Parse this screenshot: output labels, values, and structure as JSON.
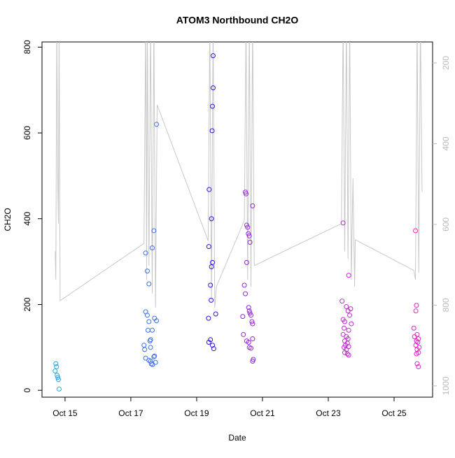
{
  "chart_data": {
    "type": "scatter",
    "title": "ATOM3 Northbound CH2O",
    "x_label": "Date",
    "y_label": "CH2O",
    "xlim": [
      14.3,
      26.17
    ],
    "ylim": [
      -16,
      812
    ],
    "y2lim": [
      1028,
      148
    ],
    "xticks": [
      {
        "value": 15,
        "label": "Oct 15"
      },
      {
        "value": 17,
        "label": "Oct 17"
      },
      {
        "value": 19,
        "label": "Oct 19"
      },
      {
        "value": 21,
        "label": "Oct 21"
      },
      {
        "value": 23,
        "label": "Oct 23"
      },
      {
        "value": 25,
        "label": "Oct 25"
      }
    ],
    "yticks": [
      0,
      200,
      400,
      600,
      800
    ],
    "y2ticks": [
      200,
      400,
      600,
      800,
      1000
    ],
    "series": [
      {
        "color": "#1ea8e8",
        "x": [
          14.72,
          14.74,
          14.7,
          14.76,
          14.78,
          14.8,
          14.82
        ],
        "values": [
          62,
          55,
          45,
          35,
          30,
          25,
          3
        ]
      },
      {
        "color": "#3a70f0",
        "x": [
          17.45,
          17.5,
          17.55,
          17.45,
          17.5,
          17.55,
          17.52,
          17.6,
          17.58,
          17.65,
          17.4,
          17.6,
          17.42,
          17.72,
          17.7,
          17.45,
          17.55,
          17.6,
          17.75,
          17.62,
          17.66,
          17.7,
          17.65,
          17.72,
          17.78,
          17.78
        ],
        "values": [
          320,
          278,
          248,
          183,
          175,
          160,
          140,
          118,
          115,
          140,
          105,
          100,
          95,
          80,
          78,
          75,
          70,
          68,
          65,
          62,
          60,
          372,
          332,
          168,
          162,
          620
        ]
      },
      {
        "color": "#2c14e6",
        "x": [
          19.5,
          19.5,
          19.48,
          19.47,
          19.38,
          19.45,
          19.37,
          19.48,
          19.45,
          19.42,
          19.44,
          19.58,
          19.36,
          19.42,
          19.37,
          19.48,
          19.52
        ],
        "values": [
          780,
          705,
          662,
          605,
          468,
          400,
          335,
          298,
          288,
          245,
          210,
          178,
          168,
          118,
          112,
          105,
          97
        ]
      },
      {
        "color": "#9624e2",
        "x": [
          20.48,
          20.5,
          20.52,
          20.55,
          20.57,
          20.6,
          20.62,
          20.7,
          20.52,
          20.45,
          20.48,
          20.58,
          20.6,
          20.62,
          20.65,
          20.4,
          20.68,
          20.7,
          20.42,
          20.7,
          20.52,
          20.58,
          20.6,
          20.65,
          20.72,
          20.7
        ],
        "values": [
          462,
          458,
          385,
          380,
          365,
          360,
          345,
          430,
          298,
          245,
          225,
          193,
          185,
          180,
          175,
          172,
          160,
          155,
          130,
          120,
          115,
          112,
          100,
          98,
          72,
          68
        ]
      },
      {
        "color": "#c426d6",
        "x": [
          23.45,
          23.62,
          23.42,
          23.55,
          23.68,
          23.6,
          23.65,
          23.45,
          23.5,
          23.7,
          23.48,
          23.62,
          23.45,
          23.55,
          23.6,
          23.5,
          23.58,
          23.52,
          23.48,
          23.62,
          23.55,
          23.5,
          23.58,
          23.62
        ],
        "values": [
          390,
          268,
          208,
          195,
          190,
          185,
          175,
          165,
          160,
          155,
          145,
          140,
          130,
          125,
          120,
          115,
          110,
          105,
          100,
          102,
          95,
          88,
          85,
          82
        ]
      },
      {
        "color": "#e024cc",
        "x": [
          25.65,
          25.68,
          25.66,
          25.6,
          25.7,
          25.62,
          25.74,
          25.68,
          25.72,
          25.66,
          25.76,
          25.7,
          25.74,
          25.68,
          25.7,
          25.74
        ],
        "values": [
          372,
          198,
          185,
          145,
          130,
          125,
          120,
          115,
          112,
          105,
          100,
          95,
          88,
          85,
          62,
          55
        ]
      }
    ],
    "line": {
      "axis": "y2",
      "color": "#c8c8c8",
      "x": [
        14.7,
        14.72,
        14.75,
        14.78,
        14.8,
        14.82,
        14.85,
        17.4,
        17.45,
        17.48,
        17.5,
        17.55,
        17.6,
        17.65,
        17.7,
        17.75,
        17.8,
        19.35,
        19.4,
        19.45,
        19.5,
        19.55,
        19.6,
        20.45,
        20.5,
        20.55,
        20.6,
        20.65,
        20.7,
        20.75,
        23.4,
        23.45,
        23.5,
        23.55,
        23.6,
        23.65,
        23.7,
        23.75,
        23.8,
        23.82,
        25.6,
        25.65,
        25.7,
        25.75,
        25.8,
        25.85
      ],
      "values": [
        667,
        737,
        100,
        503,
        598,
        100,
        789,
        647,
        100,
        737,
        100,
        702,
        100,
        771,
        100,
        806,
        304,
        641,
        100,
        789,
        100,
        806,
        754,
        590,
        100,
        737,
        100,
        754,
        100,
        702,
        598,
        100,
        667,
        100,
        685,
        100,
        737,
        486,
        754,
        638,
        714,
        737,
        100,
        720,
        100,
        520
      ]
    }
  }
}
